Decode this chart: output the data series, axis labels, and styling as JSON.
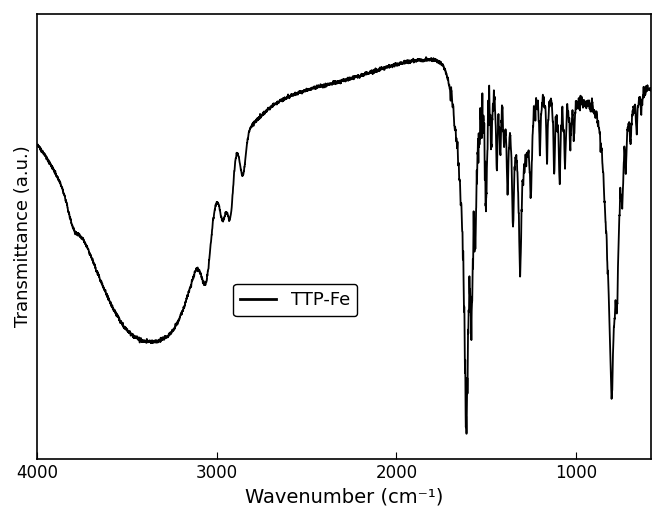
{
  "xlabel": "Wavenumber (cm⁻¹)",
  "ylabel": "Transmittance (a.u.)",
  "legend_label": "TTP-Fe",
  "xmin": 580,
  "xmax": 4000,
  "line_color": "#000000",
  "line_width": 1.3,
  "background_color": "#ffffff",
  "xticks": [
    4000,
    3000,
    2000,
    1000
  ],
  "xlabel_fontsize": 14,
  "ylabel_fontsize": 13,
  "tick_fontsize": 12
}
